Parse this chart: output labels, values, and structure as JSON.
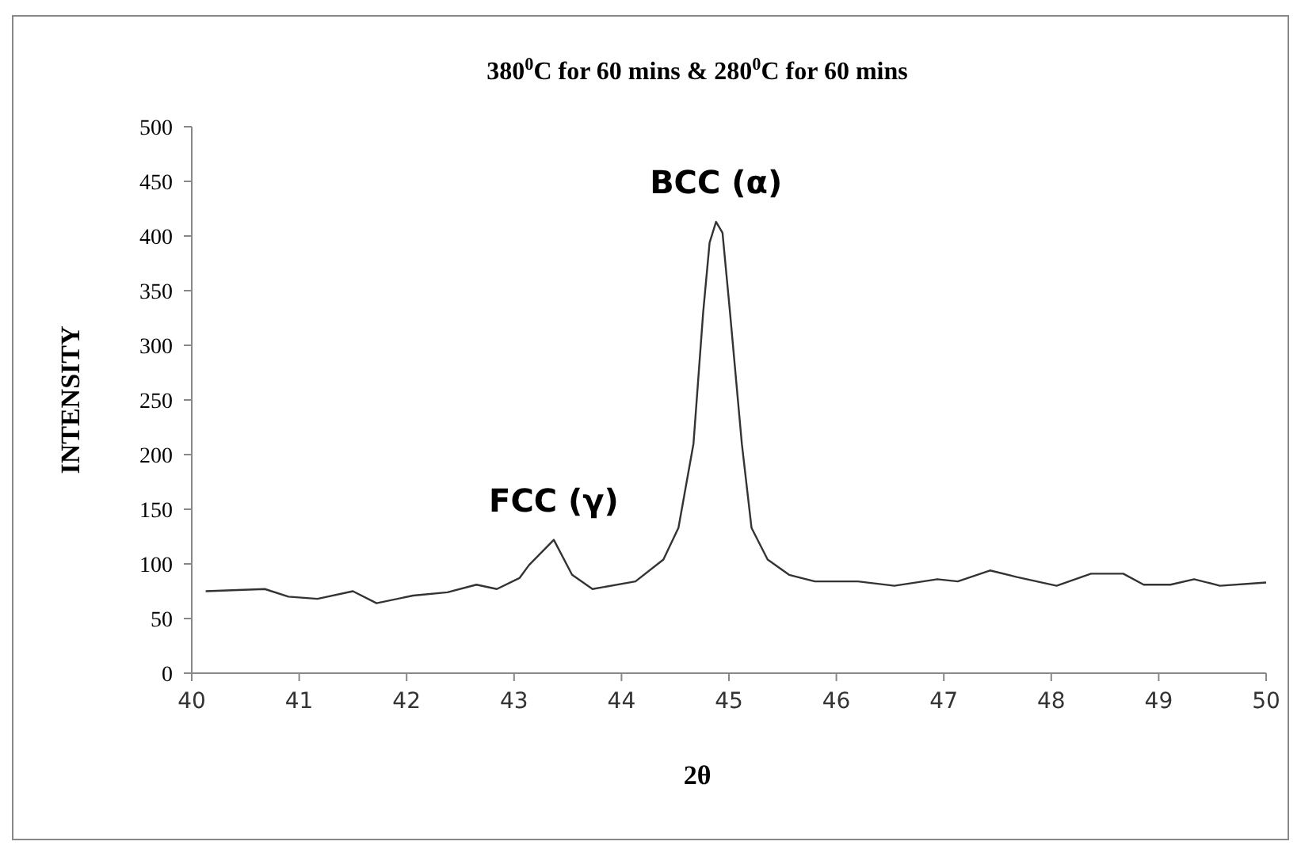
{
  "chart_data": {
    "type": "line",
    "title": "380$^{0}$C for 60 mins & 280$^{0}$C for 60 mins",
    "xlabel": "2θ",
    "ylabel": "INTENSITY",
    "xlim": [
      40,
      50
    ],
    "xticks": [
      40,
      41,
      42,
      43,
      44,
      45,
      46,
      47,
      48,
      49,
      50
    ],
    "ylim": [
      0,
      500
    ],
    "yticks": [
      0,
      50,
      100,
      150,
      200,
      250,
      300,
      350,
      400,
      450,
      500
    ],
    "grid": false,
    "marker": "none",
    "line_style": "solid",
    "annotations": [
      {
        "text": "FCC (γ)",
        "x": 43.37,
        "y": 122
      },
      {
        "text": "BCC (α)",
        "x": 44.88,
        "y": 413
      }
    ],
    "series": [
      {
        "color": "#333333",
        "x": [
          40.13,
          40.68,
          40.9,
          41.17,
          41.5,
          41.72,
          42.06,
          42.38,
          42.65,
          42.84,
          43.05,
          43.14,
          43.37,
          43.54,
          43.73,
          44.13,
          44.39,
          44.53,
          44.67,
          44.76,
          44.82,
          44.88,
          44.94,
          45.01,
          45.12,
          45.21,
          45.36,
          45.56,
          45.8,
          46.2,
          46.54,
          46.94,
          47.13,
          47.43,
          47.68,
          48.05,
          48.37,
          48.67,
          48.86,
          49.11,
          49.33,
          49.57,
          50.0
        ],
        "values": [
          75,
          77,
          70,
          68,
          75,
          64,
          71,
          74,
          81,
          77,
          87,
          99,
          122,
          90,
          77,
          84,
          104,
          133,
          210,
          330,
          394,
          413,
          403,
          330,
          210,
          133,
          104,
          90,
          84,
          84,
          80,
          86,
          84,
          94,
          88,
          80,
          91,
          91,
          81,
          81,
          86,
          80,
          83
        ]
      }
    ]
  }
}
